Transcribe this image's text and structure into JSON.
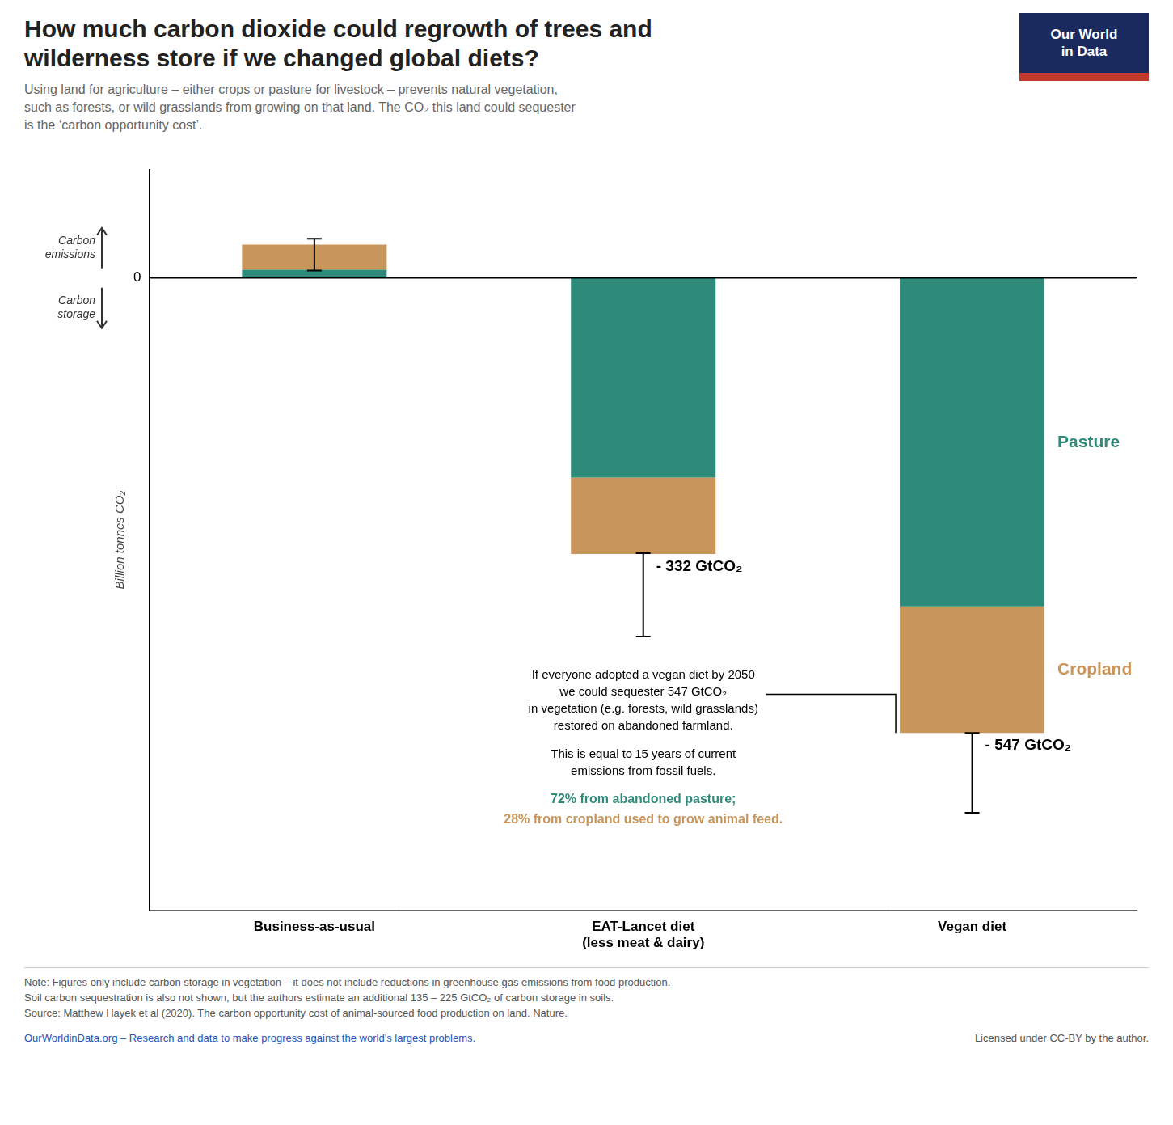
{
  "chart_data": {
    "type": "bar",
    "stacked": true,
    "title": "How much carbon dioxide could regrowth of trees and\nwilderness store if we changed global diets?",
    "subtitle": "Using land for agriculture – either crops or pasture for livestock – prevents natural vegetation,\nsuch as forests, or wild grasslands from growing on that land. The CO₂ this land could sequester\nis the ‘carbon opportunity cost’.",
    "categories": [
      "Business-as-usual",
      "EAT-Lancet diet\n(less meat & dairy)",
      "Vegan diet"
    ],
    "series": [
      {
        "name": "Pasture",
        "color": "#2E8B7A",
        "values": [
          10,
          -240,
          -395
        ]
      },
      {
        "name": "Cropland",
        "color": "#C8955A",
        "values": [
          30,
          -92,
          -152
        ]
      }
    ],
    "totals": [
      null,
      -332,
      -547
    ],
    "total_labels": [
      null,
      "- 332 GtCO₂",
      "- 547 GtCO₂"
    ],
    "error_center": [
      28,
      -381,
      -595
    ],
    "error": [
      19,
      50,
      48
    ],
    "ylabel": "Billion tonnes CO₂",
    "ylim": [
      -760,
      130
    ],
    "yticks": [
      0
    ],
    "grid": false,
    "annotations": [
      "Carbon\nemissions",
      "Carbon\nstorage",
      "If everyone adopted a vegan diet by 2050\nwe could sequester 547 GtCO₂\nin vegetation (e.g. forests, wild grasslands)\nrestored on abandoned farmland.",
      "This is equal to 15 years of current\nemissions from fossil fuels.",
      "72% from abandoned pasture;",
      "28% from cropland used to grow animal feed."
    ],
    "notes": [
      "Note: Figures only include carbon storage in vegetation – it does not include reductions in greenhouse gas emissions from food production.",
      "Soil carbon sequestration is also not shown, but the authors estimate an additional 135 – 225 GtCO₂ of carbon storage in soils.",
      "Source: Matthew Hayek et al (2020). The carbon opportunity cost of animal-sourced food production on land. Nature."
    ],
    "footer": [
      "OurWorldinData.org – Research and data to make progress against the world’s largest problems.",
      "Licensed under CC-BY by the author."
    ],
    "logo": "Our World\nin Data",
    "logo_colors": [
      "#1b2a5e",
      "#c0392b"
    ]
  }
}
